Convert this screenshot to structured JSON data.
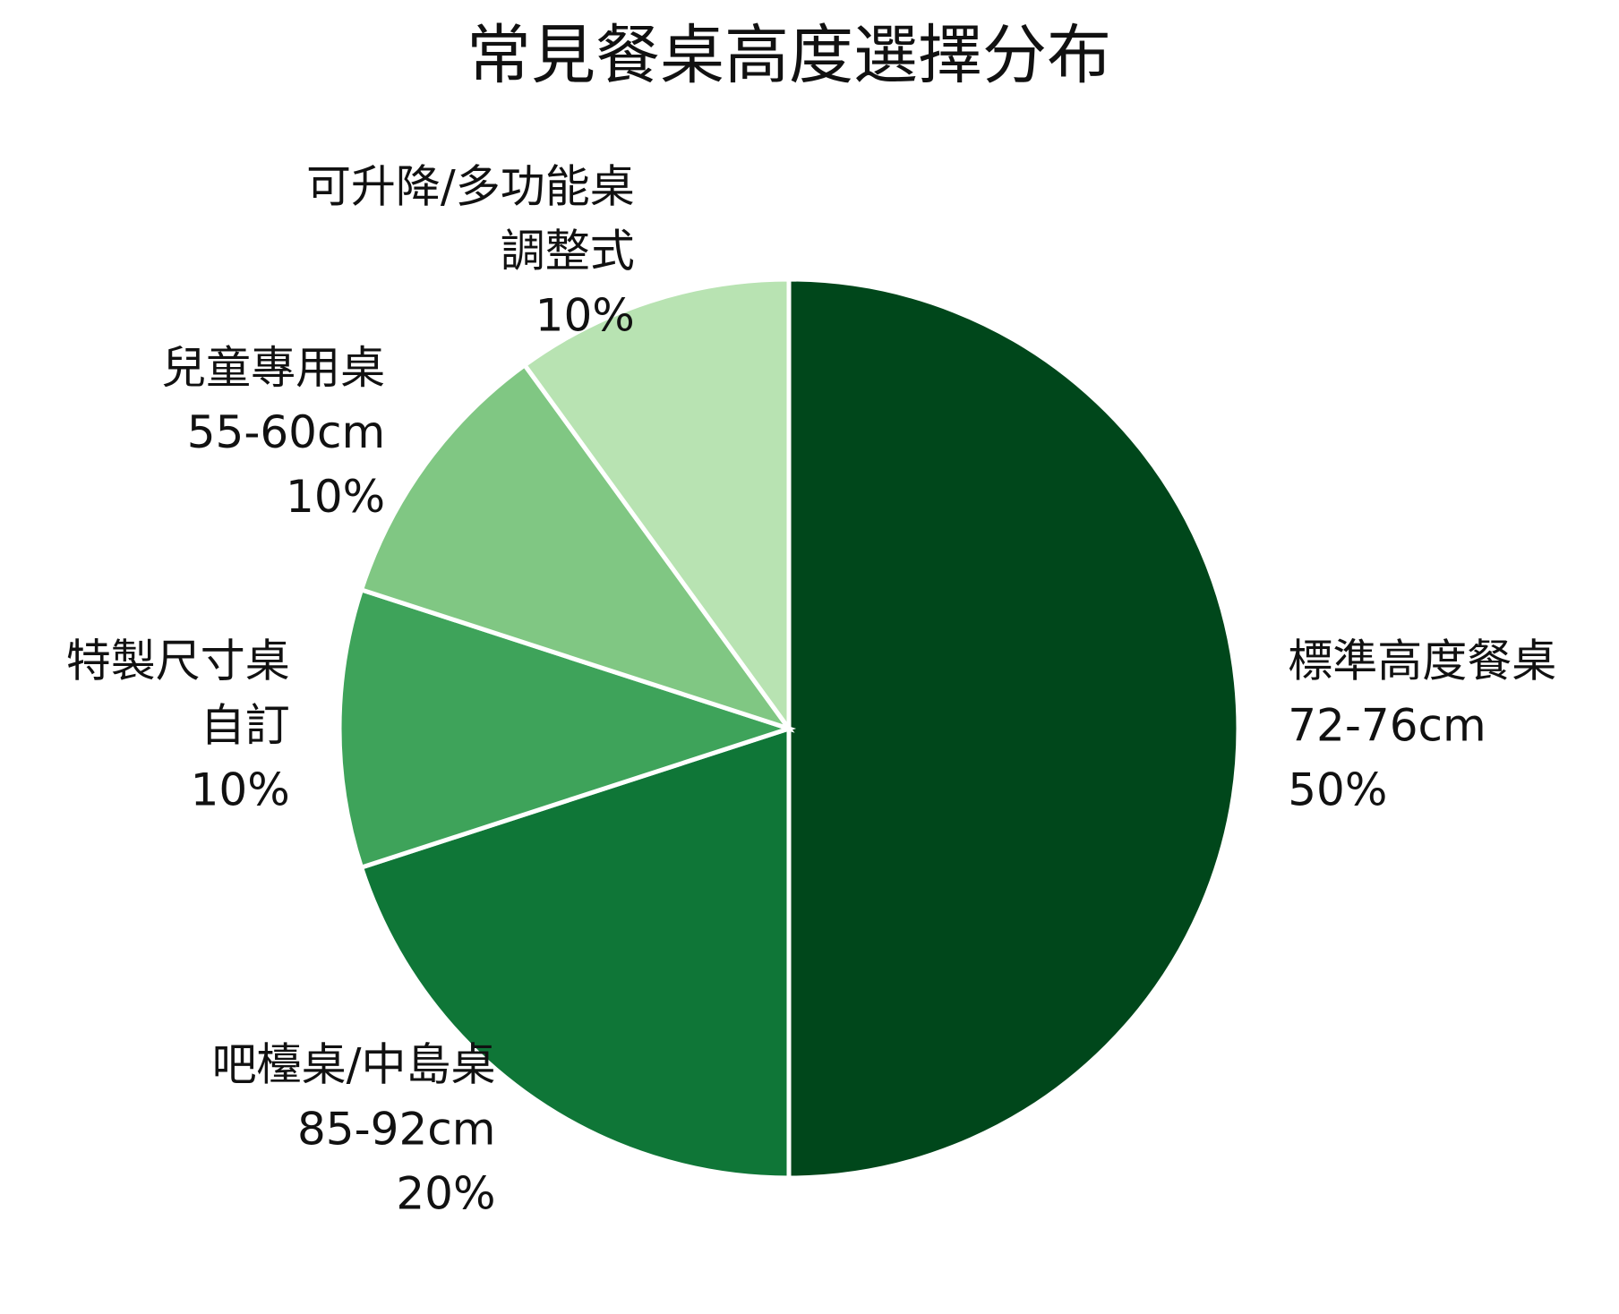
{
  "chart_data": {
    "type": "pie",
    "title": "常見餐桌高度選擇分布",
    "categories": [
      "標準高度餐桌",
      "吧檯桌/中島桌",
      "特製尺寸桌",
      "兒童專用桌",
      "可升降/多功能桌"
    ],
    "details": [
      "72-76cm",
      "85-92cm",
      "自訂",
      "55-60cm",
      "調整式"
    ],
    "values": [
      50,
      20,
      10,
      10,
      10
    ],
    "value_labels": [
      "50%",
      "20%",
      "10%",
      "10%",
      "10%"
    ],
    "colors": [
      "#00471b",
      "#0f7637",
      "#3ea35a",
      "#80c783",
      "#b8e3b2"
    ]
  }
}
